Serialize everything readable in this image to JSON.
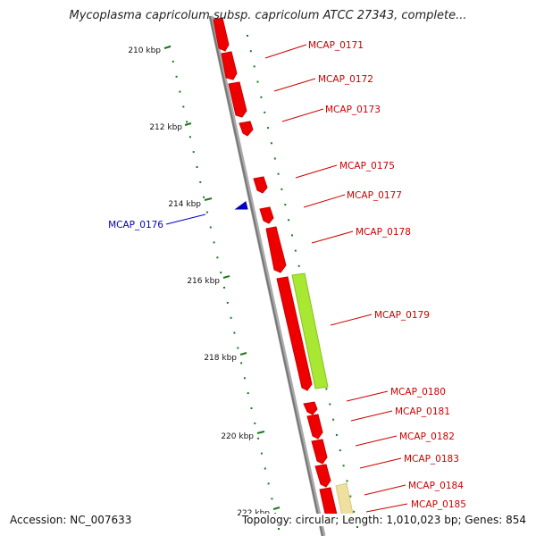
{
  "title": "Mycoplasma capricolum subsp. capricolum ATCC 27343, complete...",
  "footer": {
    "accession": "Accession: NC_007633",
    "summary": "Topology: circular; Length: 1,010,023 bp; Genes: 854"
  },
  "colors": {
    "gene_forward": "#ff0000",
    "gene_reverse": "#0000cc",
    "label_forward": "#cc0000",
    "label_reverse": "#0000cc",
    "tick": "#1a7a1a",
    "backbone": "#888888",
    "feature_green": "#a8e832",
    "feature_yellow": "#f0e0a0"
  },
  "ticks": [
    {
      "kbp": 210,
      "label": "210 kbp"
    },
    {
      "kbp": 212,
      "label": "212 kbp"
    },
    {
      "kbp": 214,
      "label": "214 kbp"
    },
    {
      "kbp": 216,
      "label": "216 kbp"
    },
    {
      "kbp": 218,
      "label": "218 kbp"
    },
    {
      "kbp": 220,
      "label": "220 kbp"
    },
    {
      "kbp": 222,
      "label": "222 kbp"
    }
  ],
  "genes": [
    {
      "label": "MCAP_0171",
      "strand": "+"
    },
    {
      "label": "MCAP_0172",
      "strand": "+"
    },
    {
      "label": "MCAP_0173",
      "strand": "+"
    },
    {
      "label": "MCAP_0175",
      "strand": "+"
    },
    {
      "label": "MCAP_0177",
      "strand": "+"
    },
    {
      "label": "MCAP_0176",
      "strand": "-"
    },
    {
      "label": "MCAP_0178",
      "strand": "+"
    },
    {
      "label": "MCAP_0179",
      "strand": "+"
    },
    {
      "label": "MCAP_0180",
      "strand": "+"
    },
    {
      "label": "MCAP_0181",
      "strand": "+"
    },
    {
      "label": "MCAP_0182",
      "strand": "+"
    },
    {
      "label": "MCAP_0183",
      "strand": "+"
    },
    {
      "label": "MCAP_0184",
      "strand": "+"
    },
    {
      "label": "MCAP_0185",
      "strand": "+"
    }
  ]
}
